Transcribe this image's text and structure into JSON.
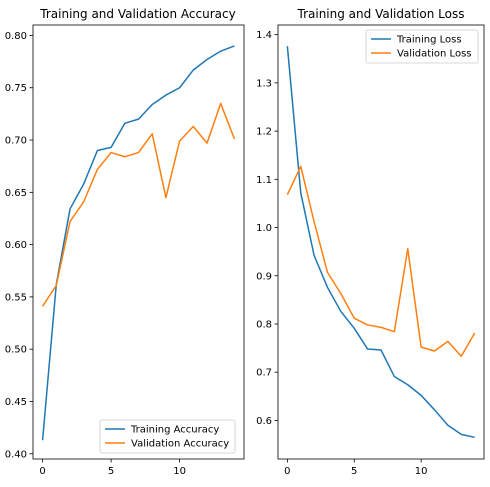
{
  "chart_data": [
    {
      "type": "line",
      "title": "Training and Validation Accuracy",
      "xlabel": "",
      "ylabel": "",
      "xlim": [
        -0.7,
        14.7
      ],
      "ylim": [
        0.395,
        0.81
      ],
      "x_ticks": [
        0,
        5,
        10
      ],
      "x_tick_labels": [
        "0",
        "5",
        "10"
      ],
      "y_ticks": [
        0.4,
        0.45,
        0.5,
        0.55,
        0.6,
        0.65,
        0.7,
        0.75,
        0.8
      ],
      "y_tick_labels": [
        "0.40",
        "0.45",
        "0.50",
        "0.55",
        "0.60",
        "0.65",
        "0.70",
        "0.75",
        "0.80"
      ],
      "grid": false,
      "legend_position": "lower-right",
      "x": [
        0,
        1,
        2,
        3,
        4,
        5,
        6,
        7,
        8,
        9,
        10,
        11,
        12,
        13,
        14
      ],
      "series": [
        {
          "name": "Training Accuracy",
          "color": "#1f77b4",
          "values": [
            0.413,
            0.562,
            0.634,
            0.658,
            0.69,
            0.693,
            0.716,
            0.72,
            0.734,
            0.743,
            0.75,
            0.767,
            0.777,
            0.785,
            0.79
          ]
        },
        {
          "name": "Validation Accuracy",
          "color": "#ff7f0e",
          "values": [
            0.541,
            0.561,
            0.622,
            0.641,
            0.672,
            0.688,
            0.684,
            0.688,
            0.706,
            0.645,
            0.699,
            0.713,
            0.697,
            0.735,
            0.701
          ]
        }
      ]
    },
    {
      "type": "line",
      "title": "Training and Validation Loss",
      "xlabel": "",
      "ylabel": "",
      "xlim": [
        -0.7,
        14.7
      ],
      "ylim": [
        0.52,
        1.42
      ],
      "x_ticks": [
        0,
        5,
        10
      ],
      "x_tick_labels": [
        "0",
        "5",
        "10"
      ],
      "y_ticks": [
        0.6,
        0.7,
        0.8,
        0.9,
        1.0,
        1.1,
        1.2,
        1.3,
        1.4
      ],
      "y_tick_labels": [
        "0.6",
        "0.7",
        "0.8",
        "0.9",
        "1.0",
        "1.1",
        "1.2",
        "1.3",
        "1.4"
      ],
      "grid": false,
      "legend_position": "upper-right",
      "x": [
        0,
        1,
        2,
        3,
        4,
        5,
        6,
        7,
        8,
        9,
        10,
        11,
        12,
        13,
        14
      ],
      "series": [
        {
          "name": "Training Loss",
          "color": "#1f77b4",
          "values": [
            1.376,
            1.072,
            0.942,
            0.876,
            0.826,
            0.791,
            0.748,
            0.746,
            0.691,
            0.674,
            0.652,
            0.622,
            0.59,
            0.571,
            0.565
          ]
        },
        {
          "name": "Validation Loss",
          "color": "#ff7f0e",
          "values": [
            1.068,
            1.127,
            1.012,
            0.907,
            0.863,
            0.812,
            0.798,
            0.793,
            0.784,
            0.956,
            0.752,
            0.744,
            0.764,
            0.733,
            0.781
          ]
        }
      ]
    }
  ]
}
